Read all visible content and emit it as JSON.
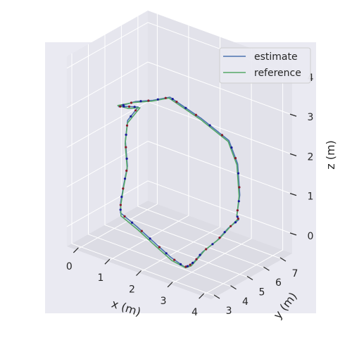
{
  "chart_data": {
    "type": "line",
    "projection": "3d",
    "title": "",
    "xlabel": "x (m)",
    "ylabel": "y (m)",
    "zlabel": "z (m)",
    "xlim": [
      -0.3,
      4.3
    ],
    "ylim": [
      2.7,
      7.6
    ],
    "zlim": [
      -0.5,
      4.3
    ],
    "xticks": [
      "0",
      "1",
      "2",
      "3",
      "4"
    ],
    "yticks": [
      "3",
      "4",
      "5",
      "6",
      "7"
    ],
    "zticks": [
      "0",
      "1",
      "2",
      "3",
      "4"
    ],
    "grid": true,
    "legend": "top-right",
    "colors": {
      "pane_left": "#e6e6ee",
      "pane_back": "#e2e2ea",
      "pane_floor": "#dcdce4",
      "background": "#eaeaf2",
      "markers": [
        "#8a1c2c",
        "#1a1a9a"
      ]
    },
    "series": [
      {
        "name": "estimate",
        "color": "#4c72b0",
        "points": [
          [
            0.65,
            4.0,
            3.0
          ],
          [
            0.8,
            4.2,
            3.0
          ],
          [
            0.92,
            4.7,
            2.9
          ],
          [
            0.9,
            4.1,
            2.7
          ],
          [
            0.88,
            4.0,
            2.2
          ],
          [
            0.84,
            4.2,
            1.5
          ],
          [
            0.7,
            4.25,
            1.0
          ],
          [
            0.52,
            4.4,
            0.45
          ],
          [
            0.54,
            4.35,
            0.2
          ],
          [
            1.2,
            4.1,
            0.1
          ],
          [
            2.0,
            3.7,
            0.0
          ],
          [
            2.7,
            3.3,
            -0.05
          ],
          [
            3.3,
            3.0,
            -0.05
          ],
          [
            3.4,
            3.05,
            0.0
          ],
          [
            3.5,
            3.2,
            0.1
          ],
          [
            3.6,
            3.5,
            0.3
          ],
          [
            3.9,
            3.8,
            0.6
          ],
          [
            4.1,
            4.1,
            0.9
          ],
          [
            4.28,
            4.4,
            1.1
          ],
          [
            4.3,
            4.25,
            1.25
          ],
          [
            4.0,
            5.0,
            1.5
          ],
          [
            3.3,
            6.2,
            1.8
          ],
          [
            2.6,
            7.0,
            2.0
          ],
          [
            1.6,
            7.25,
            2.2
          ],
          [
            0.9,
            7.2,
            2.4
          ],
          [
            0.72,
            7.0,
            2.55
          ],
          [
            0.7,
            6.0,
            2.7
          ],
          [
            0.68,
            5.0,
            2.9
          ],
          [
            0.65,
            4.0,
            3.0
          ]
        ]
      },
      {
        "name": "reference",
        "color": "#55a868",
        "points": [
          [
            0.6,
            4.05,
            3.0
          ],
          [
            0.85,
            4.25,
            2.95
          ],
          [
            0.95,
            4.75,
            2.88
          ],
          [
            0.92,
            4.05,
            2.65
          ],
          [
            0.9,
            3.95,
            2.15
          ],
          [
            0.86,
            4.15,
            1.45
          ],
          [
            0.72,
            4.2,
            0.95
          ],
          [
            0.55,
            4.35,
            0.4
          ],
          [
            0.58,
            4.3,
            0.15
          ],
          [
            1.25,
            4.05,
            0.05
          ],
          [
            2.05,
            3.65,
            -0.05
          ],
          [
            2.75,
            3.25,
            -0.1
          ],
          [
            3.3,
            3.05,
            -0.08
          ],
          [
            3.45,
            3.1,
            0.0
          ],
          [
            3.55,
            3.25,
            0.15
          ],
          [
            3.65,
            3.55,
            0.35
          ],
          [
            3.95,
            3.85,
            0.65
          ],
          [
            4.15,
            4.15,
            0.95
          ],
          [
            4.3,
            4.35,
            1.15
          ],
          [
            4.25,
            4.35,
            1.2
          ],
          [
            3.95,
            5.05,
            1.45
          ],
          [
            3.25,
            6.25,
            1.75
          ],
          [
            2.55,
            7.05,
            1.95
          ],
          [
            1.55,
            7.3,
            2.15
          ],
          [
            0.85,
            7.25,
            2.35
          ],
          [
            0.66,
            7.05,
            2.5
          ],
          [
            0.64,
            6.05,
            2.65
          ],
          [
            0.62,
            5.05,
            2.85
          ],
          [
            0.6,
            4.05,
            3.0
          ]
        ]
      }
    ]
  }
}
